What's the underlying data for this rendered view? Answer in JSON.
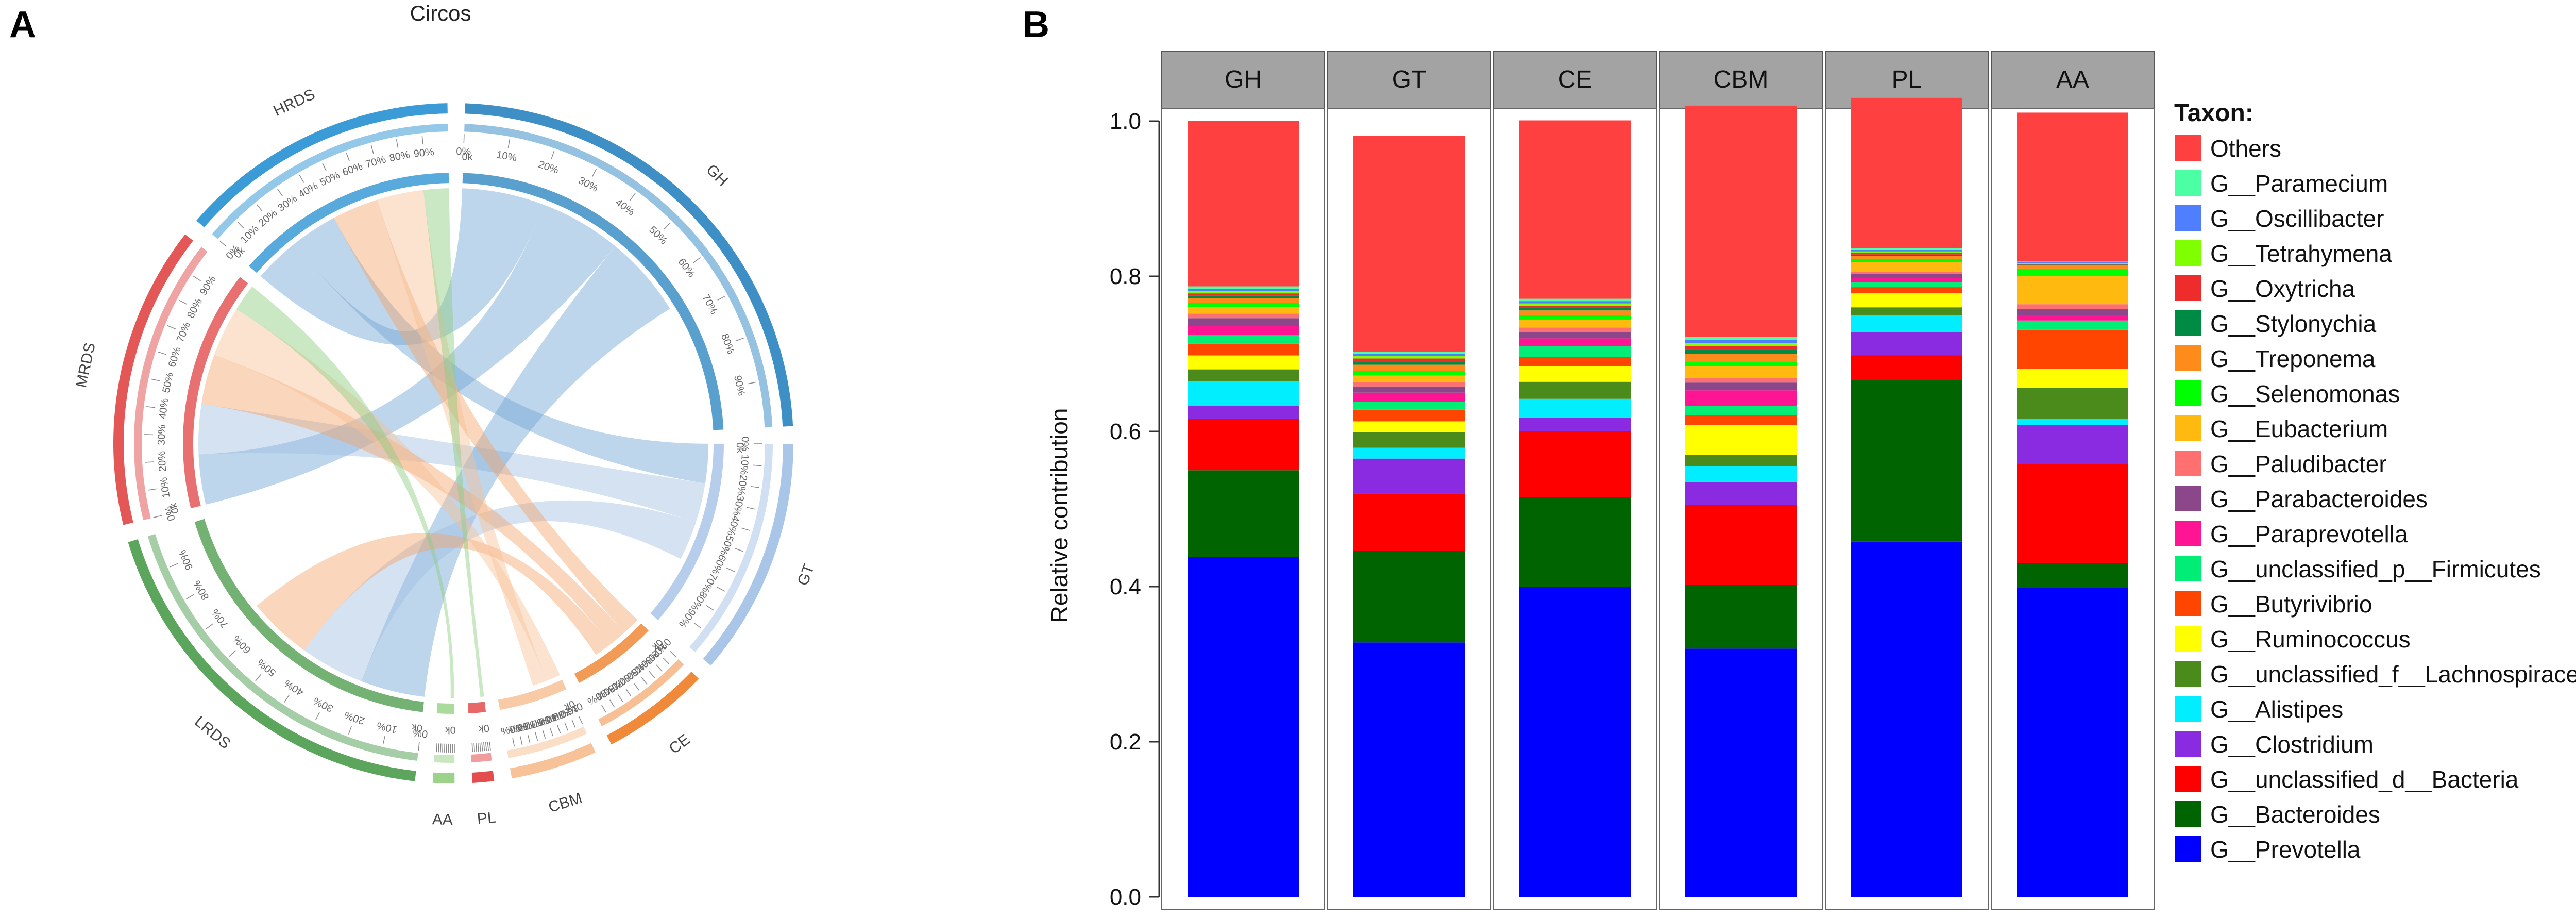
{
  "panel_labels": {
    "a": "A",
    "b": "B"
  },
  "circos": {
    "title": "Circos",
    "segments": [
      {
        "name": "GH",
        "size": 23,
        "color": "#3d8fc6",
        "inner": "#3d8fc6"
      },
      {
        "name": "GT",
        "size": 11,
        "color": "#a9c6e8",
        "inner": "#a9c6e8"
      },
      {
        "name": "CE",
        "size": 5,
        "color": "#f08a3a",
        "inner": "#f08a3a"
      },
      {
        "name": "CBM",
        "size": 4,
        "color": "#f7c297",
        "inner": "#f7c297"
      },
      {
        "name": "PL",
        "size": 1,
        "color": "#e44d4d",
        "inner": "#e44d4d"
      },
      {
        "name": "AA",
        "size": 1,
        "color": "#9bd38b",
        "inner": "#9bd38b"
      },
      {
        "name": "LRDS",
        "size": 18,
        "color": "#5ca55c",
        "inner": "#5ca55c"
      },
      {
        "name": "MRDS",
        "size": 14,
        "color": "#e45757",
        "inner": "#e45757"
      },
      {
        "name": "HRDS",
        "size": 13,
        "color": "#3b9bd6",
        "inner": "#3b9bd6"
      }
    ],
    "ticks": [
      "0%",
      "10%",
      "20%",
      "30%",
      "40%",
      "50%",
      "60%",
      "70%",
      "80%",
      "90%"
    ],
    "zero_tick": "0k",
    "links": [
      {
        "from": "HRDS",
        "to": "GH",
        "color": "#6fa3d3"
      },
      {
        "from": "HRDS",
        "to": "GT",
        "color": "#6fa3d3"
      },
      {
        "from": "MRDS",
        "to": "GH",
        "color": "#6fa3d3"
      },
      {
        "from": "MRDS",
        "to": "GT",
        "color": "#9fbfe3"
      },
      {
        "from": "LRDS",
        "to": "GH",
        "color": "#6fa3d3"
      },
      {
        "from": "LRDS",
        "to": "GT",
        "color": "#9fbfe3"
      },
      {
        "from": "HRDS",
        "to": "CE",
        "color": "#f3a56a"
      },
      {
        "from": "MRDS",
        "to": "CE",
        "color": "#f3a56a"
      },
      {
        "from": "LRDS",
        "to": "CE",
        "color": "#f3a56a"
      },
      {
        "from": "MRDS",
        "to": "CBM",
        "color": "#f7c297"
      },
      {
        "from": "HRDS",
        "to": "CBM",
        "color": "#f7c297"
      },
      {
        "from": "MRDS",
        "to": "AA",
        "color": "#8ccc7e"
      },
      {
        "from": "HRDS",
        "to": "PL",
        "color": "#8ccc7e"
      }
    ]
  },
  "chart_data": {
    "type": "bar",
    "stacked": true,
    "facets": [
      "GH",
      "GT",
      "CE",
      "CBM",
      "PL",
      "AA"
    ],
    "ylabel": "Relative contribution",
    "ylim": [
      0,
      1
    ],
    "yticks": [
      "0.0",
      "0.2",
      "0.4",
      "0.6",
      "0.8",
      "1.0"
    ],
    "legend_title": "Taxon:",
    "series": [
      {
        "name": "G__Prevotella",
        "color": "#0000ff",
        "values": [
          0.438,
          0.328,
          0.4,
          0.32,
          0.458,
          0.398
        ]
      },
      {
        "name": "G__Bacteroides",
        "color": "#006400",
        "values": [
          0.112,
          0.118,
          0.115,
          0.082,
          0.208,
          0.032
        ]
      },
      {
        "name": "G__unclassified_d__Bacteria",
        "color": "#ff0000",
        "values": [
          0.066,
          0.074,
          0.085,
          0.103,
          0.032,
          0.128
        ]
      },
      {
        "name": "G__Clostridium",
        "color": "#8a2be2",
        "values": [
          0.017,
          0.045,
          0.018,
          0.03,
          0.03,
          0.05
        ]
      },
      {
        "name": "G__Alistipes",
        "color": "#00eeff",
        "values": [
          0.032,
          0.014,
          0.024,
          0.02,
          0.022,
          0.008
        ]
      },
      {
        "name": "G__unclassified_f__Lachnospiraceae",
        "color": "#4b8b1b",
        "values": [
          0.015,
          0.02,
          0.022,
          0.015,
          0.01,
          0.04
        ]
      },
      {
        "name": "G__Ruminococcus",
        "color": "#ffff00",
        "values": [
          0.018,
          0.014,
          0.02,
          0.038,
          0.018,
          0.025
        ]
      },
      {
        "name": "G__Butyrivibrio",
        "color": "#ff4500",
        "values": [
          0.015,
          0.015,
          0.012,
          0.013,
          0.008,
          0.05
        ]
      },
      {
        "name": "G__unclassified_p__Firmicutes",
        "color": "#00ee76",
        "values": [
          0.011,
          0.01,
          0.014,
          0.012,
          0.006,
          0.012
        ]
      },
      {
        "name": "G__Paraprevotella",
        "color": "#ff1493",
        "values": [
          0.012,
          0.012,
          0.01,
          0.02,
          0.006,
          0.007
        ]
      },
      {
        "name": "G__Parabacteroides",
        "color": "#8b4789",
        "values": [
          0.01,
          0.008,
          0.008,
          0.01,
          0.005,
          0.008
        ]
      },
      {
        "name": "G__Paludibacter",
        "color": "#ff7070",
        "values": [
          0.006,
          0.006,
          0.006,
          0.006,
          0.003,
          0.006
        ]
      },
      {
        "name": "G__Eubacterium",
        "color": "#ffb90f",
        "values": [
          0.008,
          0.008,
          0.01,
          0.015,
          0.012,
          0.036
        ]
      },
      {
        "name": "G__Selenomonas",
        "color": "#00ff00",
        "values": [
          0.006,
          0.006,
          0.006,
          0.006,
          0.004,
          0.01
        ]
      },
      {
        "name": "G__Treponema",
        "color": "#ff8c1a",
        "values": [
          0.006,
          0.008,
          0.006,
          0.01,
          0.004,
          0.004
        ]
      },
      {
        "name": "G__Stylonychia",
        "color": "#008b45",
        "values": [
          0.003,
          0.004,
          0.003,
          0.005,
          0.002,
          0.001
        ]
      },
      {
        "name": "G__Oxytricha",
        "color": "#ee2c2c",
        "values": [
          0.003,
          0.004,
          0.003,
          0.005,
          0.002,
          0.001
        ]
      },
      {
        "name": "G__Tetrahymena",
        "color": "#7fff00",
        "values": [
          0.003,
          0.003,
          0.003,
          0.004,
          0.002,
          0.001
        ]
      },
      {
        "name": "G__Oscillibacter",
        "color": "#4f7fff",
        "values": [
          0.003,
          0.003,
          0.003,
          0.004,
          0.002,
          0.001
        ]
      },
      {
        "name": "G__Paramecium",
        "color": "#4cffa5",
        "values": [
          0.003,
          0.003,
          0.003,
          0.004,
          0.002,
          0.001
        ]
      },
      {
        "name": "Others",
        "color": "#ff4040",
        "values": [
          0.213,
          0.278,
          0.23,
          0.298,
          0.194,
          0.192
        ]
      }
    ]
  }
}
